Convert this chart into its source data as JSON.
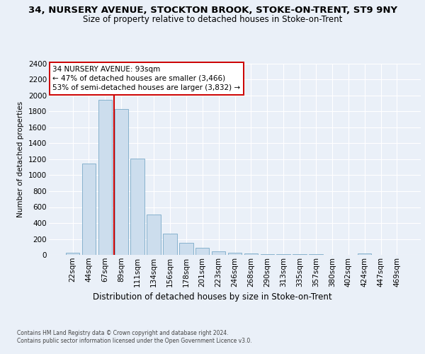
{
  "title": "34, NURSERY AVENUE, STOCKTON BROOK, STOKE-ON-TRENT, ST9 9NY",
  "subtitle": "Size of property relative to detached houses in Stoke-on-Trent",
  "xlabel": "Distribution of detached houses by size in Stoke-on-Trent",
  "ylabel": "Number of detached properties",
  "bar_labels": [
    "22sqm",
    "44sqm",
    "67sqm",
    "89sqm",
    "111sqm",
    "134sqm",
    "156sqm",
    "178sqm",
    "201sqm",
    "223sqm",
    "246sqm",
    "268sqm",
    "290sqm",
    "313sqm",
    "335sqm",
    "357sqm",
    "380sqm",
    "402sqm",
    "424sqm",
    "447sqm",
    "469sqm"
  ],
  "bar_values": [
    30,
    1150,
    1950,
    1830,
    1210,
    510,
    265,
    150,
    90,
    45,
    25,
    20,
    10,
    8,
    5,
    5,
    3,
    2,
    15,
    2,
    1
  ],
  "bar_color": "#ccdded",
  "bar_edge_color": "#7aaac8",
  "vline_color": "#cc0000",
  "vline_x": 2.57,
  "annotation_line1": "34 NURSERY AVENUE: 93sqm",
  "annotation_line2": "← 47% of detached houses are smaller (3,466)",
  "annotation_line3": "53% of semi-detached houses are larger (3,832) →",
  "ylim_max": 2400,
  "yticks": [
    0,
    200,
    400,
    600,
    800,
    1000,
    1200,
    1400,
    1600,
    1800,
    2000,
    2200,
    2400
  ],
  "footnote1": "Contains HM Land Registry data © Crown copyright and database right 2024.",
  "footnote2": "Contains public sector information licensed under the Open Government Licence v3.0.",
  "bg_color": "#eaf0f8",
  "title_fontsize": 9.5,
  "subtitle_fontsize": 8.5,
  "axis_fontsize": 7.5,
  "ylabel_fontsize": 7.5,
  "xlabel_fontsize": 8.5,
  "annot_fontsize": 7.5,
  "footnote_fontsize": 5.5
}
